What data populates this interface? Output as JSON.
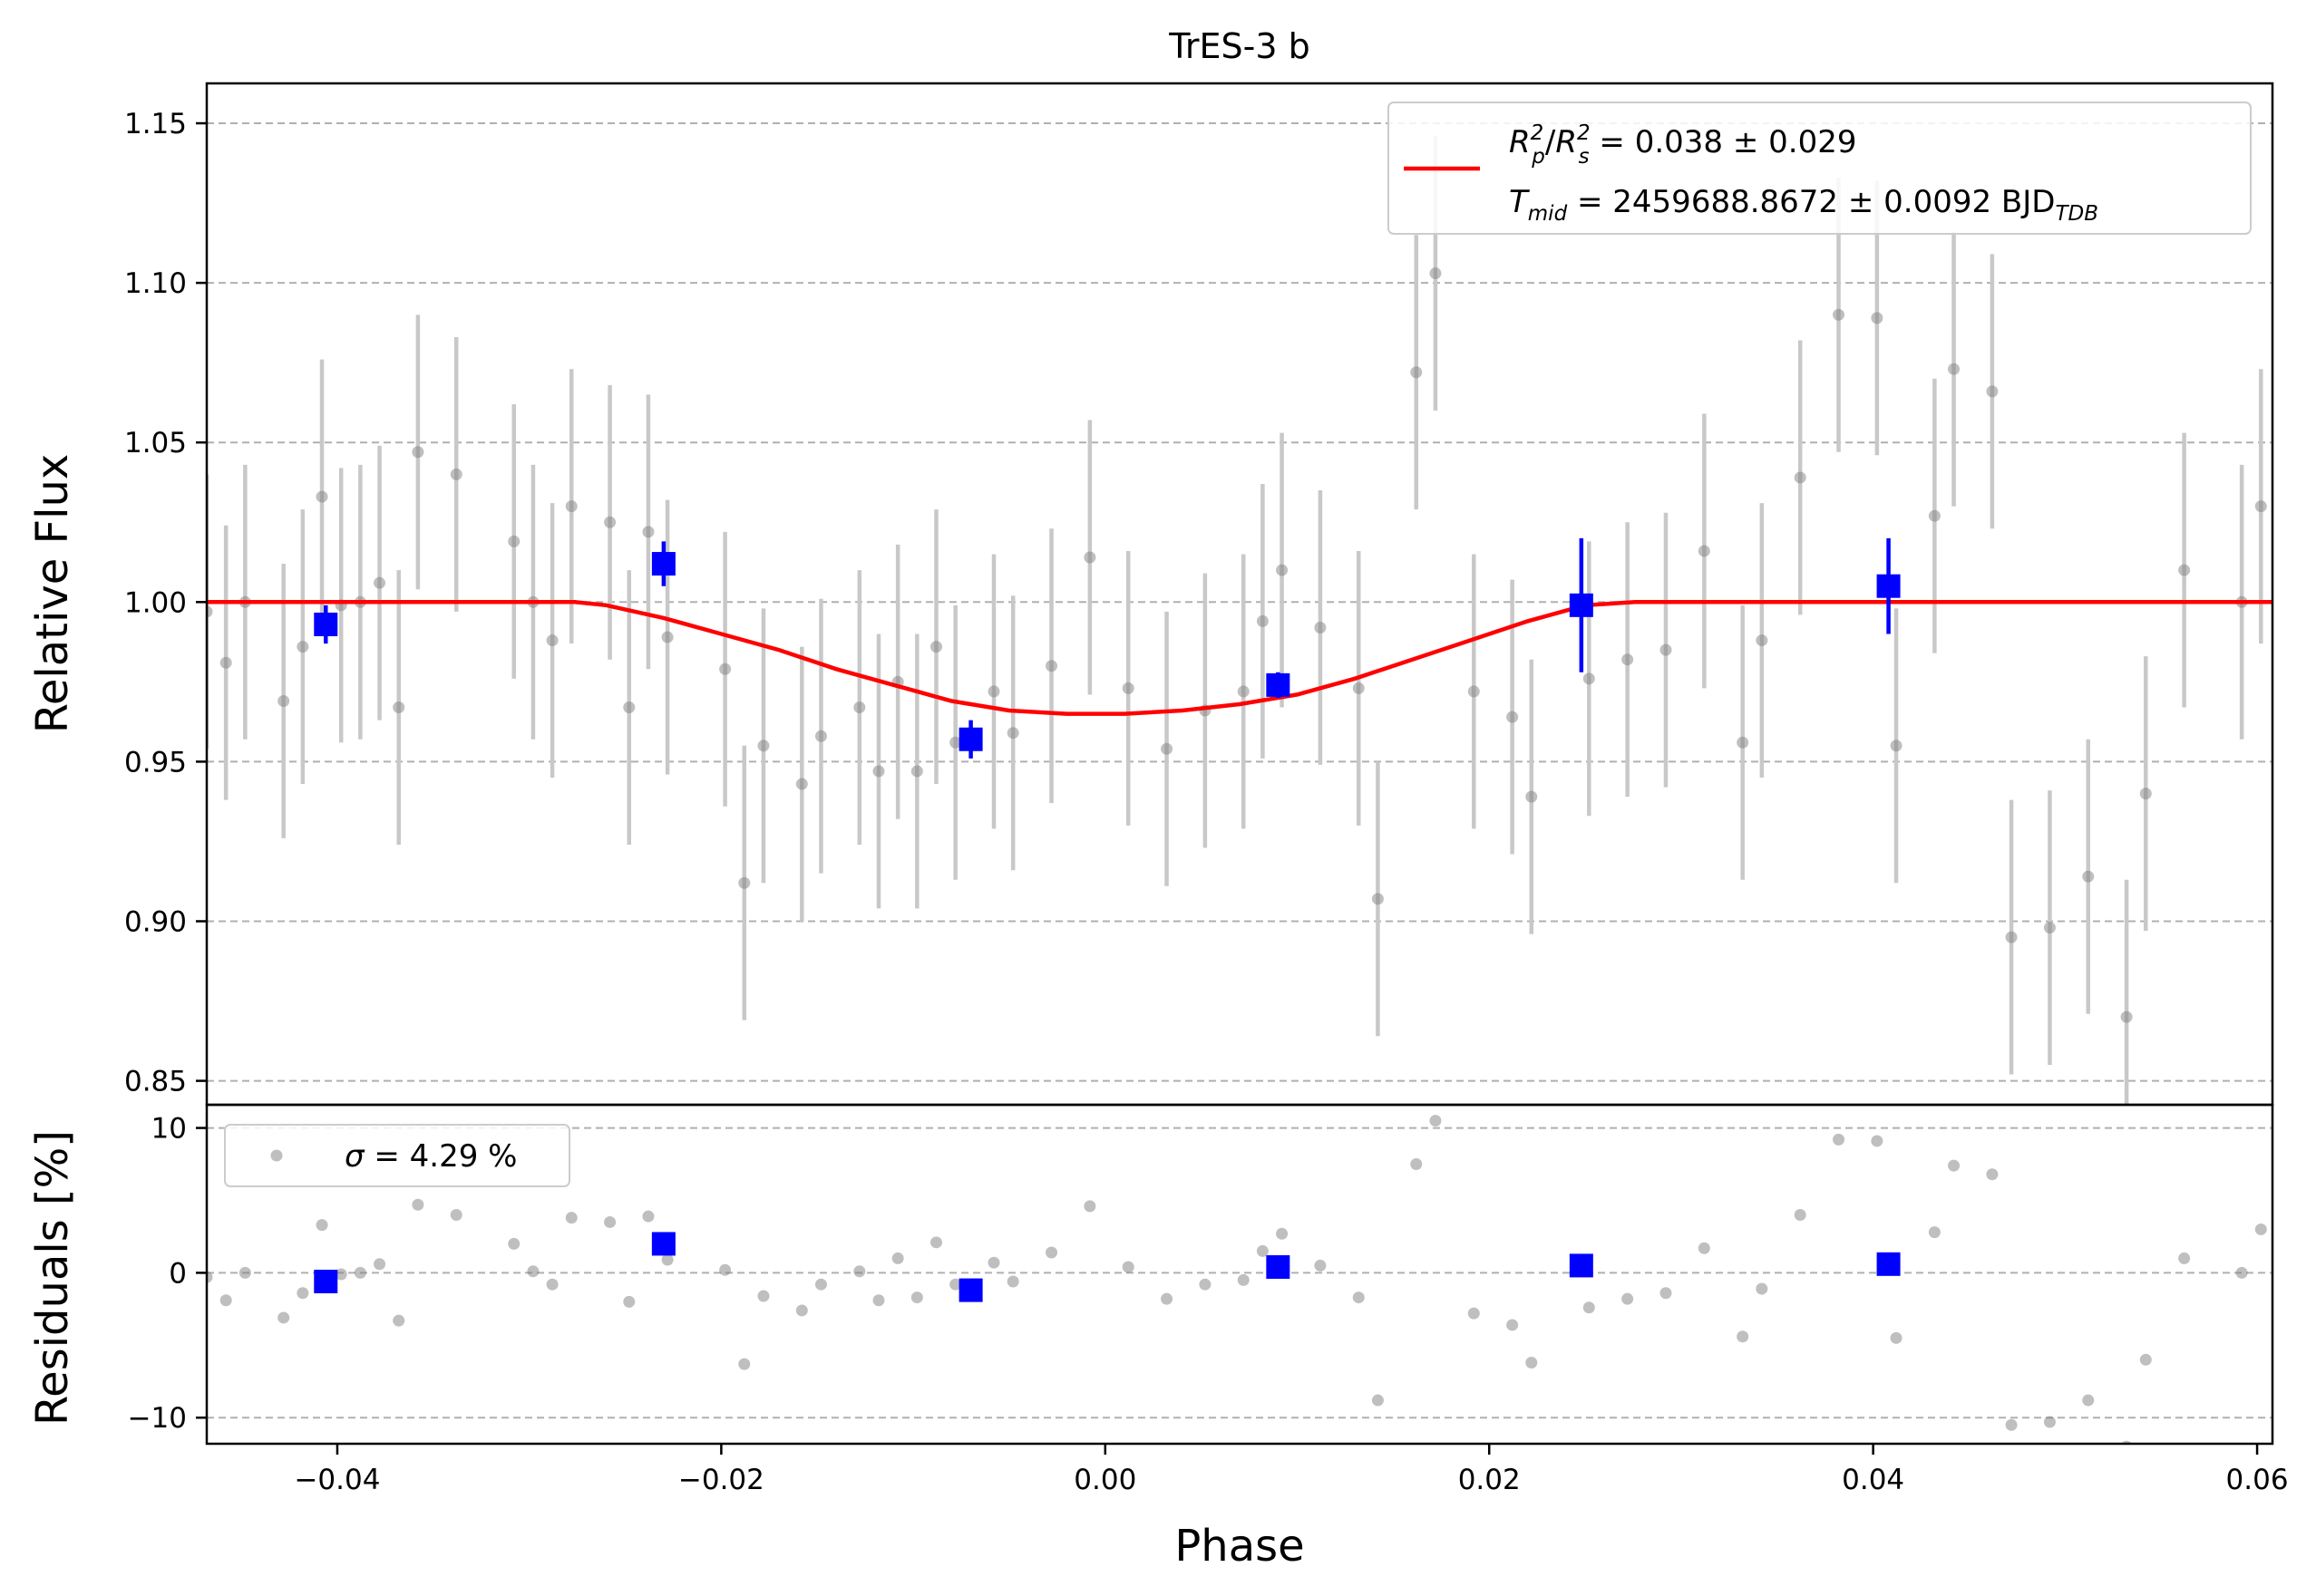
{
  "chart_data": {
    "type": "scatter",
    "title": "TrES-3 b",
    "xlabel": "Phase",
    "xlim": [
      -0.0468,
      0.0608
    ],
    "x_ticks": [
      -0.04,
      -0.02,
      0.0,
      0.02,
      0.04,
      0.06
    ],
    "x_tick_labels": [
      "−0.04",
      "−0.02",
      "0.00",
      "0.02",
      "0.04",
      "0.06"
    ],
    "colors": {
      "raw": "#808080",
      "raw_err": "#c8c8c8",
      "binned": "#0000ff",
      "model": "#ff0000"
    },
    "flux_panel": {
      "ylabel": "Relative Flux",
      "ylim": [
        0.8425,
        1.1625
      ],
      "y_ticks": [
        0.85,
        0.9,
        0.95,
        1.0,
        1.05,
        1.1,
        1.15
      ],
      "y_tick_labels": [
        "0.85",
        "0.90",
        "0.95",
        "1.00",
        "1.05",
        "1.10",
        "1.15"
      ],
      "grid": true,
      "legend": {
        "placement": "upper-right",
        "line1_main": "R",
        "line1_text": " = 0.038 ± 0.029",
        "line2_main": "T",
        "line2_sub": "mid",
        "line2_text": " = 2459688.8672 ± 0.0092 BJD",
        "line2_tail_sub": "TDB"
      },
      "raw_points": {
        "x": [
          -0.0468,
          -0.0458,
          -0.0448,
          -0.0428,
          -0.0418,
          -0.0408,
          -0.0398,
          -0.0388,
          -0.0378,
          -0.0368,
          -0.0358,
          -0.0338,
          -0.0308,
          -0.0298,
          -0.0288,
          -0.0278,
          -0.0258,
          -0.0248,
          -0.0238,
          -0.0228,
          -0.0198,
          -0.0188,
          -0.0178,
          -0.0158,
          -0.0148,
          -0.0128,
          -0.0118,
          -0.0108,
          -0.0098,
          -0.0088,
          -0.0078,
          -0.0058,
          -0.0048,
          -0.0028,
          -0.0008,
          0.0012,
          0.0032,
          0.0052,
          0.0072,
          0.0082,
          0.0092,
          0.0112,
          0.0132,
          0.0142,
          0.0162,
          0.0172,
          0.0192,
          0.0212,
          0.0222,
          0.0252,
          0.0272,
          0.0292,
          0.0312,
          0.0332,
          0.0342,
          0.0362,
          0.0382,
          0.0402,
          0.0412,
          0.0432,
          0.0442,
          0.0462,
          0.0472,
          0.0492,
          0.0512,
          0.0532,
          0.0542,
          0.0562,
          0.0592,
          0.0602
        ],
        "y": [
          0.997,
          0.981,
          1.0,
          0.969,
          0.986,
          1.033,
          0.999,
          1.0,
          1.006,
          0.967,
          1.047,
          1.04,
          1.019,
          1.0,
          0.988,
          1.03,
          1.025,
          0.967,
          1.022,
          0.989,
          0.979,
          0.912,
          0.955,
          0.943,
          0.958,
          0.967,
          0.947,
          0.975,
          0.947,
          0.986,
          0.956,
          0.972,
          0.959,
          0.98,
          1.014,
          0.973,
          0.954,
          0.966,
          0.972,
          0.994,
          1.01,
          0.992,
          0.973,
          0.907,
          1.072,
          1.103,
          0.972,
          0.964,
          0.939,
          0.976,
          0.982,
          0.985,
          1.016,
          0.956,
          0.988,
          1.039,
          1.09,
          1.089,
          0.955,
          1.027,
          1.073,
          1.066,
          0.895,
          0.898,
          0.914,
          0.87,
          0.94,
          1.01,
          1.0,
          1.03
        ],
        "err": 0.043
      },
      "binned_points": {
        "x": [
          -0.0406,
          -0.023,
          -0.007,
          0.009,
          0.0248,
          0.0408
        ],
        "y": [
          0.993,
          1.012,
          0.957,
          0.974,
          0.999,
          1.005
        ],
        "err": [
          0.006,
          0.007,
          0.006,
          0.004,
          0.021,
          0.015
        ]
      },
      "model": {
        "x": [
          -0.0468,
          -0.0276,
          -0.026,
          -0.023,
          -0.02,
          -0.017,
          -0.014,
          -0.011,
          -0.008,
          -0.005,
          -0.002,
          0.001,
          0.004,
          0.007,
          0.01,
          0.013,
          0.016,
          0.019,
          0.022,
          0.025,
          0.0276,
          0.0608
        ],
        "y": [
          1.0,
          1.0,
          0.999,
          0.995,
          0.99,
          0.985,
          0.979,
          0.974,
          0.969,
          0.966,
          0.965,
          0.965,
          0.966,
          0.968,
          0.971,
          0.976,
          0.982,
          0.988,
          0.994,
          0.999,
          1.0,
          1.0
        ]
      }
    },
    "residual_panel": {
      "ylabel": "Residuals [%]",
      "ylim": [
        -11.8,
        11.6
      ],
      "y_ticks": [
        -10,
        0,
        10
      ],
      "y_tick_labels": [
        "−10",
        "0",
        "10"
      ],
      "grid": true,
      "legend": {
        "placement": "upper-left",
        "symbol": "σ",
        "text": " = 4.29 %"
      },
      "raw_points": {
        "x": [
          -0.0468,
          -0.0458,
          -0.0448,
          -0.0428,
          -0.0418,
          -0.0408,
          -0.0398,
          -0.0388,
          -0.0378,
          -0.0368,
          -0.0358,
          -0.0338,
          -0.0308,
          -0.0298,
          -0.0288,
          -0.0278,
          -0.0258,
          -0.0248,
          -0.0238,
          -0.0228,
          -0.0198,
          -0.0188,
          -0.0178,
          -0.0158,
          -0.0148,
          -0.0128,
          -0.0118,
          -0.0108,
          -0.0098,
          -0.0088,
          -0.0078,
          -0.0058,
          -0.0048,
          -0.0028,
          -0.0008,
          0.0012,
          0.0032,
          0.0052,
          0.0072,
          0.0082,
          0.0092,
          0.0112,
          0.0132,
          0.0142,
          0.0162,
          0.0172,
          0.0192,
          0.0212,
          0.0222,
          0.0252,
          0.0272,
          0.0292,
          0.0312,
          0.0332,
          0.0342,
          0.0362,
          0.0382,
          0.0402,
          0.0412,
          0.0432,
          0.0442,
          0.0462,
          0.0472,
          0.0492,
          0.0512,
          0.0532,
          0.0542,
          0.0562,
          0.0592,
          0.0602
        ],
        "y": [
          -0.3,
          -1.9,
          0.0,
          -3.1,
          -1.4,
          3.3,
          -0.1,
          0.0,
          0.6,
          -3.3,
          4.7,
          4.0,
          2.0,
          0.1,
          -0.8,
          3.8,
          3.5,
          -2.0,
          3.9,
          0.9,
          0.2,
          -6.3,
          -1.6,
          -2.6,
          -0.8,
          0.1,
          -1.9,
          1.0,
          -1.7,
          2.1,
          -0.8,
          0.7,
          -0.6,
          1.4,
          4.6,
          0.4,
          -1.8,
          -0.8,
          -0.5,
          1.5,
          2.7,
          0.5,
          -1.7,
          -8.8,
          7.5,
          10.5,
          -2.8,
          -3.6,
          -6.2,
          -2.4,
          -1.8,
          -1.4,
          1.7,
          -4.4,
          -1.1,
          4.0,
          9.2,
          9.1,
          -4.5,
          2.8,
          7.4,
          6.8,
          -10.5,
          -10.3,
          -8.8,
          -12.0,
          -6.0,
          1.0,
          0.0,
          3.0
        ]
      },
      "binned_points": {
        "x": [
          -0.0406,
          -0.023,
          -0.007,
          0.009,
          0.0248,
          0.0408
        ],
        "y": [
          -0.6,
          2.0,
          -1.2,
          0.4,
          0.5,
          0.6
        ]
      }
    }
  }
}
